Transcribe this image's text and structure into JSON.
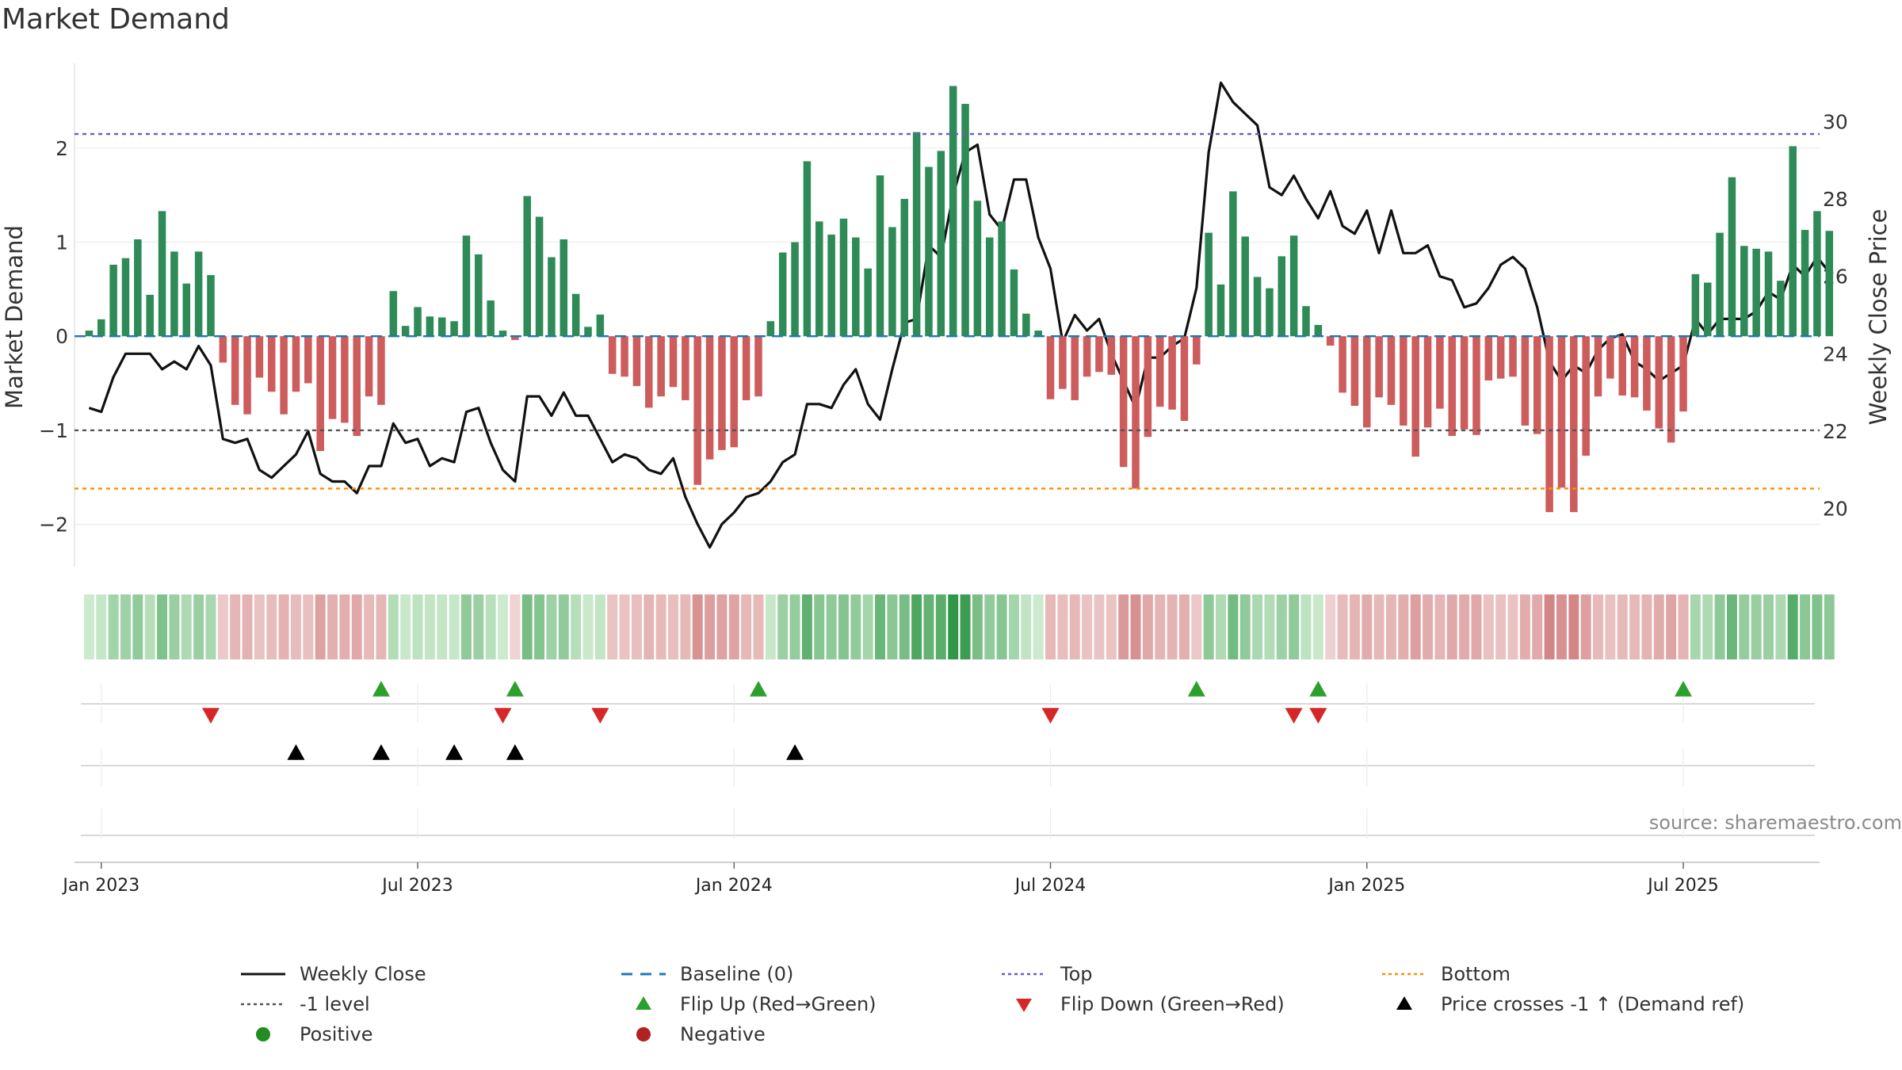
{
  "page_title": "Market Demand",
  "source_note": "source: sharemaestro.com",
  "chart_data": {
    "type": "bar",
    "title": "Market Demand",
    "ylabel_left": "Market Demand",
    "ylabel_right": "Weekly Close Price",
    "ylim_left": [
      -2.45,
      2.9
    ],
    "ylim_right": [
      18.5,
      31.5
    ],
    "left_ticks": [
      2,
      1,
      0,
      -1,
      -2
    ],
    "left_tick_labels": [
      "2",
      "1",
      "0",
      "−1",
      "−2"
    ],
    "right_ticks": [
      30,
      28,
      26,
      24,
      22,
      20
    ],
    "right_tick_labels": [
      "30",
      "28",
      "26",
      "24",
      "22",
      "20"
    ],
    "x_start_week": -1,
    "x_ticks": [
      {
        "week": 0,
        "label": "Jan 2023"
      },
      {
        "week": 26,
        "label": "Jul 2023"
      },
      {
        "week": 52,
        "label": "Jan 2024"
      },
      {
        "week": 78,
        "label": "Jul 2024"
      },
      {
        "week": 104,
        "label": "Jan 2025"
      },
      {
        "week": 130,
        "label": "Jul 2025"
      }
    ],
    "x_range_weeks": [
      -2.2,
      141.2
    ],
    "reference_lines": {
      "baseline": 0,
      "top": 2.15,
      "minus_one": -1,
      "bottom": -1.62
    },
    "demand": [
      0.06,
      0.18,
      0.76,
      0.83,
      1.03,
      0.44,
      1.33,
      0.9,
      0.56,
      0.9,
      0.65,
      -0.28,
      -0.73,
      -0.83,
      -0.44,
      -0.59,
      -0.83,
      -0.59,
      -0.5,
      -1.22,
      -0.88,
      -0.92,
      -1.06,
      -0.64,
      -0.73,
      0.48,
      0.11,
      0.31,
      0.21,
      0.2,
      0.16,
      1.07,
      0.87,
      0.38,
      0.06,
      -0.04,
      1.49,
      1.27,
      0.84,
      1.03,
      0.45,
      0.1,
      0.23,
      -0.4,
      -0.43,
      -0.53,
      -0.76,
      -0.64,
      -0.54,
      -0.68,
      -1.58,
      -1.31,
      -1.21,
      -1.18,
      -0.68,
      -0.64,
      0.16,
      0.89,
      1.0,
      1.86,
      1.22,
      1.08,
      1.25,
      1.05,
      0.72,
      1.71,
      1.16,
      1.46,
      2.17,
      1.8,
      1.97,
      2.66,
      2.47,
      1.44,
      1.05,
      1.22,
      0.71,
      0.24,
      0.06,
      -0.67,
      -0.56,
      -0.68,
      -0.43,
      -0.38,
      -0.41,
      -1.39,
      -1.62,
      -1.07,
      -0.75,
      -0.78,
      -0.9,
      -0.3,
      1.1,
      0.55,
      1.54,
      1.06,
      0.63,
      0.51,
      0.85,
      1.07,
      0.32,
      0.12,
      -0.1,
      -0.6,
      -0.74,
      -0.97,
      -0.65,
      -0.73,
      -0.95,
      -1.28,
      -0.97,
      -0.77,
      -1.06,
      -0.99,
      -1.05,
      -0.47,
      -0.45,
      -0.43,
      -0.95,
      -1.04,
      -1.87,
      -1.61,
      -1.87,
      -1.27,
      -0.64,
      -0.45,
      -0.63,
      -0.65,
      -0.79,
      -0.98,
      -1.13,
      -0.8,
      0.66,
      0.57,
      1.1,
      1.69,
      0.96,
      0.93,
      0.9,
      0.59,
      2.02,
      1.13,
      1.33,
      1.12
    ],
    "weekly_close": [
      22.6,
      22.5,
      23.4,
      24.0,
      24.0,
      24.0,
      23.6,
      23.8,
      23.6,
      24.2,
      23.7,
      21.8,
      21.7,
      21.8,
      21.0,
      20.8,
      21.1,
      21.4,
      22.0,
      20.9,
      20.7,
      20.7,
      20.4,
      21.1,
      21.1,
      22.2,
      21.7,
      21.8,
      21.1,
      21.3,
      21.2,
      22.5,
      22.6,
      21.7,
      21.0,
      20.7,
      22.9,
      22.9,
      22.4,
      23.0,
      22.4,
      22.4,
      21.8,
      21.2,
      21.4,
      21.3,
      21.0,
      20.9,
      21.3,
      20.3,
      19.6,
      19.0,
      19.6,
      19.9,
      20.3,
      20.4,
      20.7,
      21.2,
      21.4,
      22.7,
      22.7,
      22.6,
      23.2,
      23.6,
      22.7,
      22.3,
      23.6,
      24.8,
      24.9,
      26.8,
      26.5,
      28.1,
      29.2,
      29.4,
      27.6,
      27.2,
      28.5,
      28.5,
      27.0,
      26.2,
      24.3,
      25.0,
      24.6,
      24.9,
      24.0,
      23.3,
      22.6,
      23.9,
      23.9,
      24.2,
      24.4,
      25.7,
      29.2,
      31.0,
      30.5,
      30.2,
      29.9,
      28.3,
      28.1,
      28.6,
      28.0,
      27.5,
      28.2,
      27.3,
      27.1,
      27.7,
      26.6,
      27.7,
      26.6,
      26.6,
      26.8,
      26.0,
      25.9,
      25.2,
      25.3,
      25.7,
      26.3,
      26.5,
      26.2,
      25.2,
      23.8,
      23.3,
      23.7,
      23.5,
      24.1,
      24.4,
      24.5,
      23.8,
      23.6,
      23.3,
      23.5,
      23.7,
      24.9,
      24.5,
      24.9,
      24.9,
      24.9,
      25.1,
      25.6,
      25.4,
      26.3,
      26.0,
      26.5,
      26.1
    ],
    "heat_strip_label": "Market Demand heat strip",
    "flip_up_weeks": [
      23,
      34,
      54,
      90,
      100,
      130
    ],
    "flip_down_weeks": [
      9,
      33,
      41,
      78,
      98,
      100
    ],
    "price_cross_weeks": [
      16,
      23,
      29,
      34,
      57
    ],
    "colors": {
      "positive_bar": "#2e8b57",
      "negative_bar": "#cd5c5c",
      "close_line": "#111111",
      "baseline": "#1f77b4",
      "top_line": "#6a5acd",
      "minus_one_line": "#555555",
      "bottom_line": "#ff8c00",
      "flip_up": "#2ca02c",
      "flip_down": "#d62728",
      "price_cross": "#000000",
      "positive_dot": "#228b22",
      "negative_dot": "#b22222"
    },
    "legend": [
      {
        "label": "Weekly Close",
        "kind": "solid-line",
        "color": "#111111"
      },
      {
        "label": "Baseline (0)",
        "kind": "dashed-line",
        "color": "#1f77b4"
      },
      {
        "label": "Top",
        "kind": "dotted-line",
        "color": "#6a5acd"
      },
      {
        "label": "Bottom",
        "kind": "dotted-line",
        "color": "#ff8c00"
      },
      {
        "label": "-1 level",
        "kind": "dotted-line",
        "color": "#555555"
      },
      {
        "label": "Flip Up (Red→Green)",
        "kind": "triangle-up",
        "color": "#2ca02c"
      },
      {
        "label": "Flip Down (Green→Red)",
        "kind": "triangle-down",
        "color": "#d62728"
      },
      {
        "label": "Price crosses -1 ↑ (Demand ref)",
        "kind": "triangle-up",
        "color": "#000000"
      },
      {
        "label": "Positive",
        "kind": "dot",
        "color": "#228b22"
      },
      {
        "label": "Negative",
        "kind": "dot",
        "color": "#b22222"
      }
    ]
  }
}
